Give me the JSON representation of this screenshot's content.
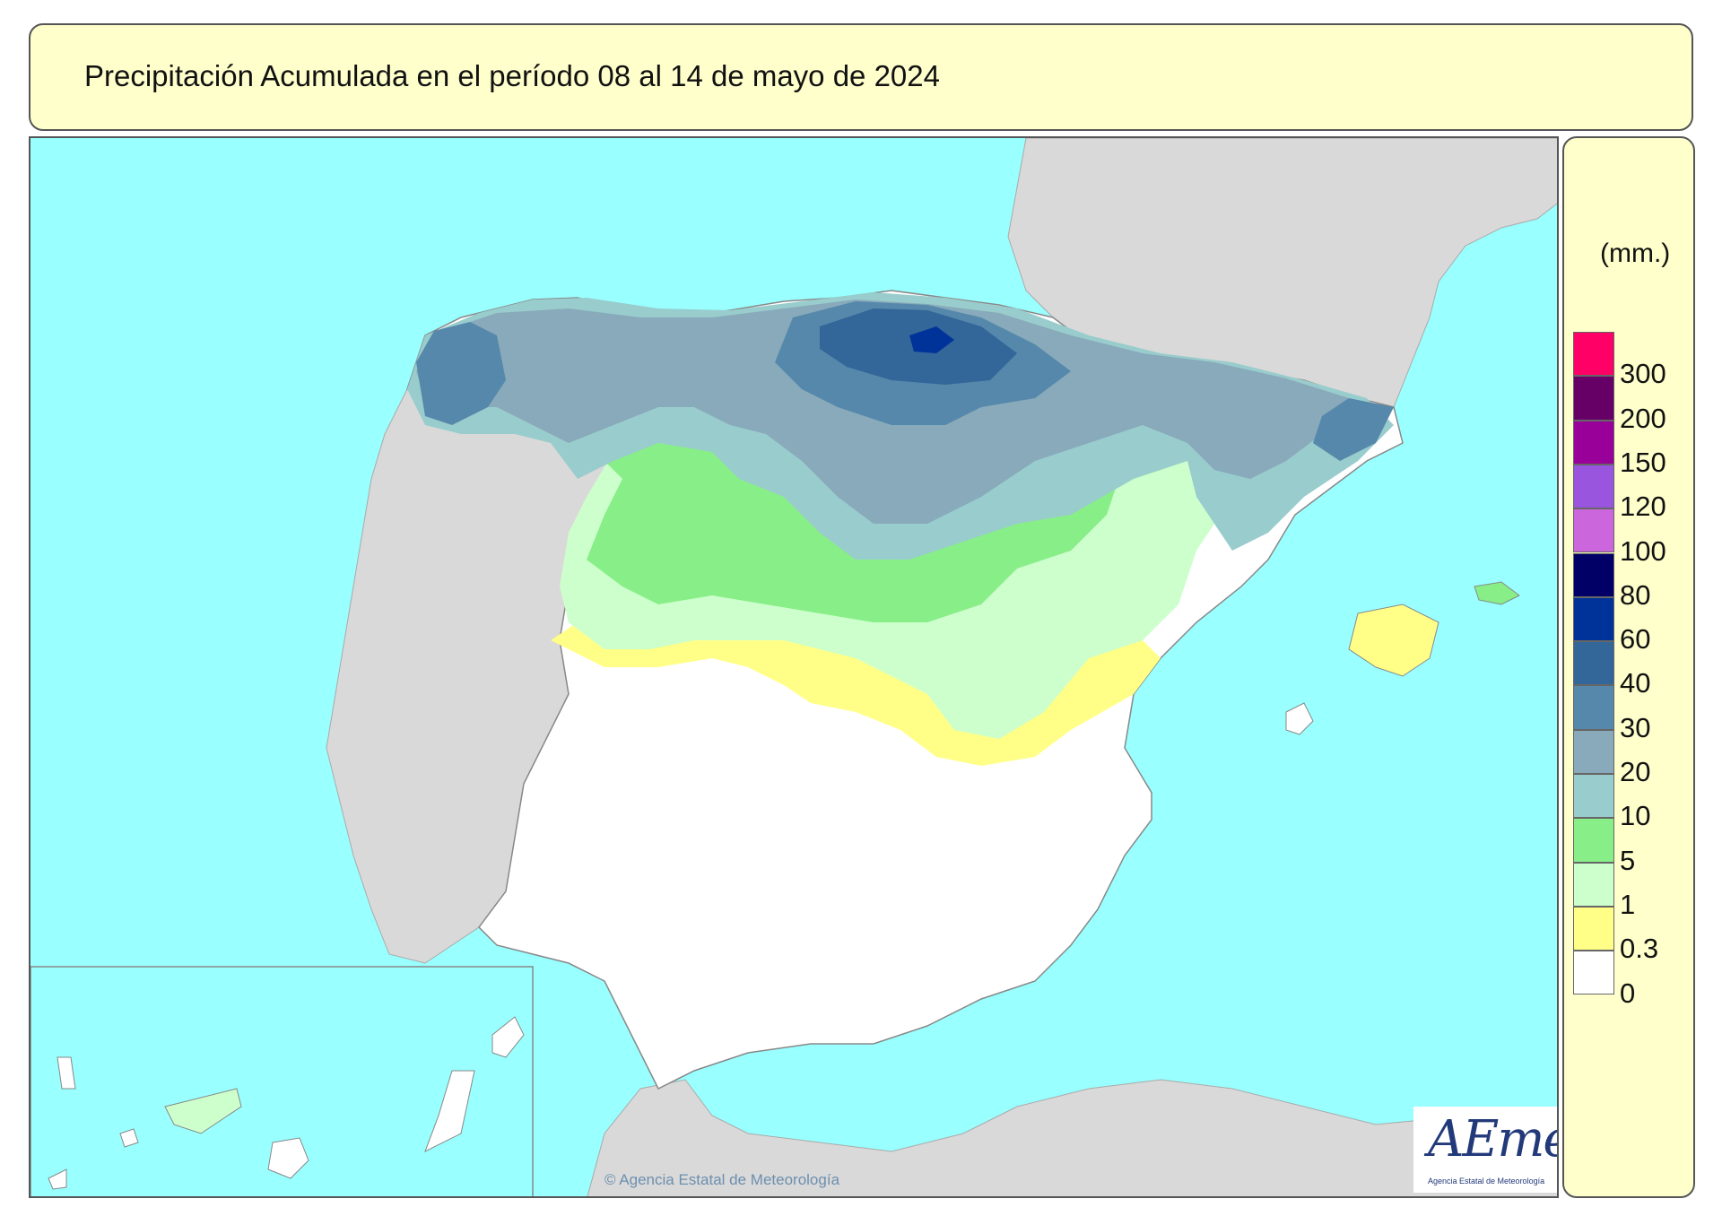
{
  "title": "Precipitación Acumulada en el período 08 al 14 de mayo de 2024",
  "legend": {
    "unit": "(mm.)",
    "classes": [
      {
        "label": "300",
        "color": "#ff0066"
      },
      {
        "label": "200",
        "color": "#660066"
      },
      {
        "label": "150",
        "color": "#990099"
      },
      {
        "label": "120",
        "color": "#9955dd"
      },
      {
        "label": "100",
        "color": "#cc66dd"
      },
      {
        "label": "80",
        "color": "#000066"
      },
      {
        "label": "60",
        "color": "#003399"
      },
      {
        "label": "40",
        "color": "#336699"
      },
      {
        "label": "30",
        "color": "#5588aa"
      },
      {
        "label": "20",
        "color": "#88aabb"
      },
      {
        "label": "10",
        "color": "#99cccc"
      },
      {
        "label": "5",
        "color": "#88ee88"
      },
      {
        "label": "1",
        "color": "#ccffcc"
      },
      {
        "label": "0.3",
        "color": "#ffff88"
      },
      {
        "label": "0",
        "color": "#ffffff"
      }
    ]
  },
  "map": {
    "sea_color": "#99ffff",
    "land_color": "#d9d9d9",
    "boundary_color": "#ffffff"
  },
  "logo": {
    "text": "AEmet",
    "subtitle": "Agencia Estatal de Meteorología"
  },
  "copyright": "© Agencia Estatal de Meteorología"
}
